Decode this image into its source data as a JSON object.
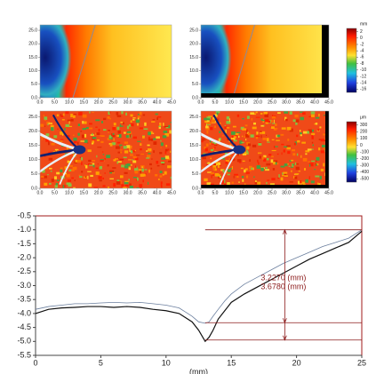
{
  "chart_data": [
    {
      "type": "heatmap",
      "style": "smooth",
      "xlim": [
        0,
        45
      ],
      "ylim": [
        0,
        27
      ],
      "xticks": [
        {
          "value": 0,
          "label": "0.0"
        },
        {
          "value": 5,
          "label": "5.0"
        },
        {
          "value": 10,
          "label": "10.0"
        },
        {
          "value": 15,
          "label": "15.0"
        },
        {
          "value": 20,
          "label": "20.0"
        },
        {
          "value": 25,
          "label": "25.0"
        },
        {
          "value": 30,
          "label": "30.0"
        },
        {
          "value": 35,
          "label": "35.0"
        },
        {
          "value": 40,
          "label": "40.0"
        },
        {
          "value": 45,
          "label": "45.0"
        }
      ],
      "yticks": [
        {
          "value": 0,
          "label": "0.0"
        },
        {
          "value": 5,
          "label": "5.0"
        },
        {
          "value": 10,
          "label": "10.0"
        },
        {
          "value": 15,
          "label": "15.0"
        },
        {
          "value": 20,
          "label": "20.0"
        },
        {
          "value": 25,
          "label": "25.0"
        }
      ]
    },
    {
      "type": "heatmap",
      "style": "smooth",
      "xlim": [
        0,
        45
      ],
      "ylim": [
        0,
        27
      ],
      "xticks": [
        {
          "value": 0,
          "label": "0.0"
        },
        {
          "value": 5,
          "label": "5.0"
        },
        {
          "value": 10,
          "label": "10.0"
        },
        {
          "value": 15,
          "label": "15.0"
        },
        {
          "value": 20,
          "label": "20.0"
        },
        {
          "value": 25,
          "label": "25.0"
        },
        {
          "value": 30,
          "label": "30.0"
        },
        {
          "value": 35,
          "label": "35.0"
        },
        {
          "value": 40,
          "label": "40.0"
        },
        {
          "value": 45,
          "label": "45.0"
        }
      ],
      "yticks": [
        {
          "value": 0,
          "label": "0.0"
        },
        {
          "value": 5,
          "label": "5.0"
        },
        {
          "value": 10,
          "label": "10.0"
        },
        {
          "value": 15,
          "label": "15.0"
        },
        {
          "value": 20,
          "label": "20.0"
        },
        {
          "value": 25,
          "label": "25.0"
        }
      ],
      "colorbar": {
        "unit": "mm",
        "clim": [
          -17,
          3
        ],
        "ticks": [
          2,
          0,
          -2,
          -4,
          -6,
          -8,
          -10,
          -12,
          -14,
          -16
        ]
      }
    },
    {
      "type": "heatmap",
      "style": "texture",
      "xlim": [
        0,
        45
      ],
      "ylim": [
        0,
        27
      ],
      "xticks": [
        {
          "value": 0,
          "label": "0.0"
        },
        {
          "value": 5,
          "label": "5.0"
        },
        {
          "value": 10,
          "label": "10.0"
        },
        {
          "value": 15,
          "label": "15.0"
        },
        {
          "value": 20,
          "label": "20.0"
        },
        {
          "value": 25,
          "label": "25.0"
        },
        {
          "value": 30,
          "label": "30.0"
        },
        {
          "value": 35,
          "label": "35.0"
        },
        {
          "value": 40,
          "label": "40.0"
        },
        {
          "value": 45,
          "label": "45.0"
        }
      ],
      "yticks": [
        {
          "value": 0,
          "label": "0.0"
        },
        {
          "value": 5,
          "label": "5.0"
        },
        {
          "value": 10,
          "label": "10.0"
        },
        {
          "value": 15,
          "label": "15.0"
        },
        {
          "value": 20,
          "label": "20.0"
        },
        {
          "value": 25,
          "label": "25.0"
        }
      ]
    },
    {
      "type": "heatmap",
      "style": "texture",
      "xlim": [
        0,
        45
      ],
      "ylim": [
        0,
        27
      ],
      "xticks": [
        {
          "value": 0,
          "label": "0.0"
        },
        {
          "value": 5,
          "label": "5.0"
        },
        {
          "value": 10,
          "label": "10.0"
        },
        {
          "value": 15,
          "label": "15.0"
        },
        {
          "value": 20,
          "label": "20.0"
        },
        {
          "value": 25,
          "label": "25.0"
        },
        {
          "value": 30,
          "label": "30.0"
        },
        {
          "value": 35,
          "label": "35.0"
        },
        {
          "value": 40,
          "label": "40.0"
        },
        {
          "value": 45,
          "label": "45.0"
        }
      ],
      "yticks": [
        {
          "value": 0,
          "label": "0.0"
        },
        {
          "value": 5,
          "label": "5.0"
        },
        {
          "value": 10,
          "label": "10.0"
        },
        {
          "value": 15,
          "label": "15.0"
        },
        {
          "value": 20,
          "label": "20.0"
        },
        {
          "value": 25,
          "label": "25.0"
        }
      ],
      "colorbar": {
        "unit": "μm",
        "clim": [
          -550,
          350
        ],
        "ticks": [
          300,
          200,
          100,
          0,
          -100,
          -200,
          -300,
          -400,
          -500
        ]
      }
    },
    {
      "type": "line",
      "xlabel": "(mm)",
      "xlim": [
        0,
        25
      ],
      "ylim": [
        -5.5,
        -0.5
      ],
      "xticks": [
        0,
        5,
        10,
        15,
        20,
        25
      ],
      "yticks": [
        -0.5,
        {
          "value": -1,
          "label": "-1.0"
        },
        -1.5,
        {
          "value": -2,
          "label": "-2.0"
        },
        -2.5,
        {
          "value": -3,
          "label": "-3.0"
        },
        -3.5,
        {
          "value": -4,
          "label": "-4.0"
        },
        -4.5,
        {
          "value": -5,
          "label": "-5.0"
        },
        -5.5
      ],
      "x": [
        0,
        1,
        2,
        3,
        4,
        5,
        6,
        7,
        8,
        9,
        10,
        11,
        11.5,
        12,
        12.5,
        13,
        13.3,
        13.6,
        14,
        14.5,
        15,
        16,
        17,
        18,
        19,
        20,
        21,
        22,
        23,
        24,
        25
      ],
      "series": [
        {
          "color": "#111111",
          "values": [
            -4.0,
            -3.85,
            -3.8,
            -3.78,
            -3.75,
            -3.75,
            -3.78,
            -3.75,
            -3.78,
            -3.85,
            -3.9,
            -4.0,
            -4.15,
            -4.3,
            -4.6,
            -5.0,
            -4.85,
            -4.6,
            -4.2,
            -3.9,
            -3.6,
            -3.3,
            -3.05,
            -2.8,
            -2.55,
            -2.3,
            -2.05,
            -1.85,
            -1.65,
            -1.45,
            -1.05
          ]
        },
        {
          "color": "#6b7f9e",
          "values": [
            -3.85,
            -3.75,
            -3.7,
            -3.65,
            -3.65,
            -3.62,
            -3.6,
            -3.62,
            -3.6,
            -3.65,
            -3.7,
            -3.8,
            -3.95,
            -4.1,
            -4.3,
            -4.35,
            -4.3,
            -4.1,
            -3.85,
            -3.55,
            -3.3,
            -2.95,
            -2.7,
            -2.45,
            -2.2,
            -2.0,
            -1.8,
            -1.6,
            -1.45,
            -1.3,
            -1.0
          ]
        }
      ],
      "hlines": [
        -1.0,
        -4.33,
        -4.95
      ],
      "hline_start": 13,
      "vline": 19.1,
      "annotations": [
        "3.2270   (mm)",
        "3.6780   (mm)"
      ],
      "annotation_color": "#8b1a1a"
    }
  ]
}
